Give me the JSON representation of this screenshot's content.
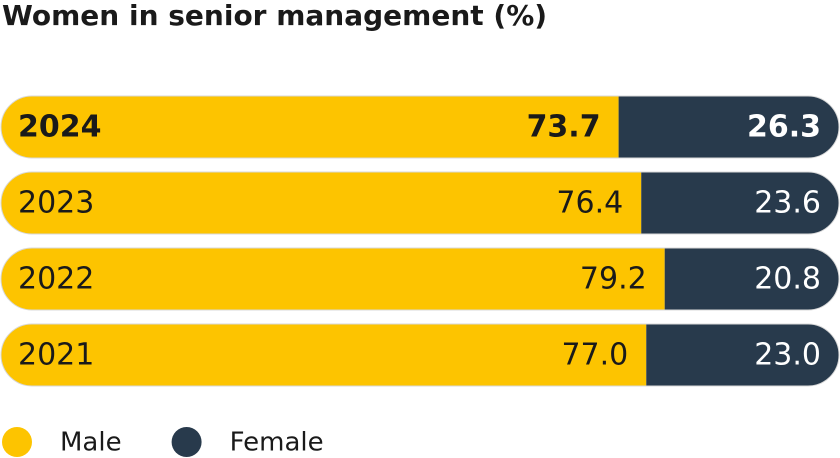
{
  "chart_data": {
    "type": "stacked-bar",
    "title": "Women in senior management (%)",
    "categories": [
      "2024",
      "2023",
      "2022",
      "2021"
    ],
    "series": [
      {
        "name": "Male",
        "color": "#fdc400",
        "values": [
          73.7,
          76.4,
          79.2,
          77.0
        ],
        "value_labels": [
          "73.7",
          "76.4",
          "79.2",
          "77.0"
        ]
      },
      {
        "name": "Female",
        "color": "#283a4c",
        "values": [
          26.3,
          23.6,
          20.8,
          23.0
        ],
        "value_labels": [
          "26.3",
          "23.6",
          "20.8",
          "23.0"
        ]
      }
    ]
  }
}
